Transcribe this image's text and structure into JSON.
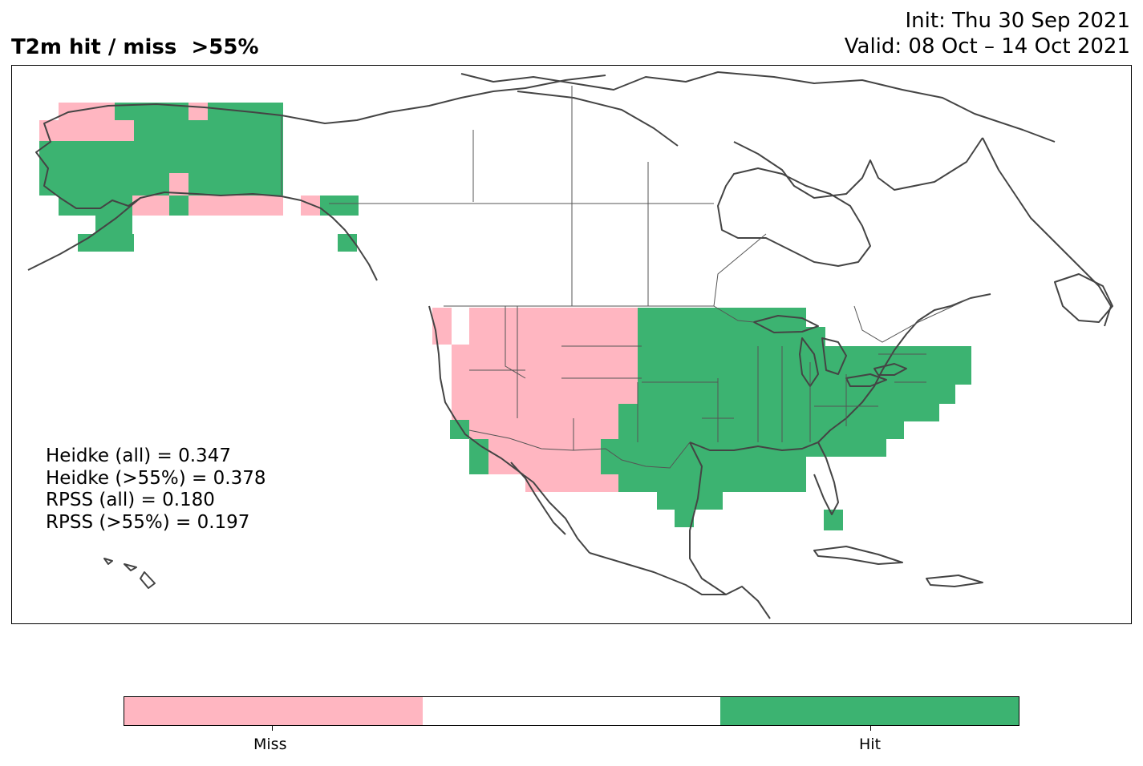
{
  "title": "T2m hit / miss  >55%",
  "init_line": "Init: Thu 30 Sep 2021",
  "valid_line": "Valid: 08 Oct – 14 Oct 2021",
  "stats": [
    "Heidke (all) = 0.347",
    "Heidke (>55%) = 0.378",
    "RPSS (all) = 0.180",
    "RPSS (>55%) = 0.197"
  ],
  "colors": {
    "miss": "#ffb6c1",
    "none": "#ffffff",
    "hit": "#3cb371",
    "coast": "#444444",
    "border": "#555555"
  },
  "legend": {
    "segments": [
      "miss",
      "none",
      "hit"
    ],
    "labels": [
      "Miss",
      "Hit"
    ]
  },
  "map_layers": [
    "coastlines",
    "country-borders",
    "state-province-borders",
    "hit-miss-grid"
  ]
}
